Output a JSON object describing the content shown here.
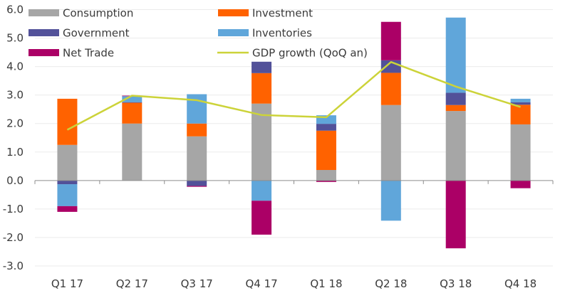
{
  "chart_data": {
    "type": "bar",
    "stacked": true,
    "title": "",
    "xlabel": "",
    "ylabel": "",
    "ylim": [
      -3.0,
      6.0
    ],
    "yticks": [
      "6.0",
      "5.0",
      "4.0",
      "3.0",
      "2.0",
      "1.0",
      "0.0",
      "-1.0",
      "-2.0",
      "-3.0"
    ],
    "ytick_values": [
      6,
      5,
      4,
      3,
      2,
      1,
      0,
      -1,
      -2,
      -3
    ],
    "grid": true,
    "legend_position": "top",
    "categories": [
      "Q1 17",
      "Q2 17",
      "Q3 17",
      "Q4 17",
      "Q1 18",
      "Q2 18",
      "Q3 18",
      "Q4 18"
    ],
    "series": [
      {
        "name": "Consumption",
        "color": "#a6a6a6",
        "values": [
          1.25,
          2.0,
          1.55,
          2.7,
          0.37,
          2.65,
          2.44,
          1.97
        ]
      },
      {
        "name": "Investment",
        "color": "#ff6200",
        "values": [
          1.62,
          0.73,
          0.45,
          1.07,
          1.38,
          1.13,
          0.21,
          0.69
        ]
      },
      {
        "name": "Government",
        "color": "#525199",
        "values": [
          -0.13,
          0.02,
          -0.19,
          0.4,
          0.24,
          0.44,
          0.43,
          0.09
        ]
      },
      {
        "name": "Inventories",
        "color": "#60a6da",
        "values": [
          -0.77,
          0.21,
          1.03,
          -0.71,
          0.3,
          -1.41,
          2.64,
          0.12
        ]
      },
      {
        "name": "Net Trade",
        "color": "#ab0066",
        "values": [
          -0.2,
          0.02,
          -0.03,
          -1.19,
          -0.05,
          1.35,
          -2.38,
          -0.27
        ]
      }
    ],
    "line_series": {
      "name": "GDP growth (QoQ an)",
      "color": "#ccd339",
      "values": [
        1.78,
        2.98,
        2.82,
        2.3,
        2.22,
        4.16,
        3.3,
        2.58
      ]
    },
    "legend": [
      {
        "name": "Consumption",
        "kind": "bar",
        "color": "#a6a6a6"
      },
      {
        "name": "Investment",
        "kind": "bar",
        "color": "#ff6200"
      },
      {
        "name": "Government",
        "kind": "bar",
        "color": "#525199"
      },
      {
        "name": "Inventories",
        "kind": "bar",
        "color": "#60a6da"
      },
      {
        "name": "Net Trade",
        "kind": "bar",
        "color": "#ab0066"
      },
      {
        "name": "GDP growth (QoQ an)",
        "kind": "line",
        "color": "#ccd339"
      }
    ]
  }
}
